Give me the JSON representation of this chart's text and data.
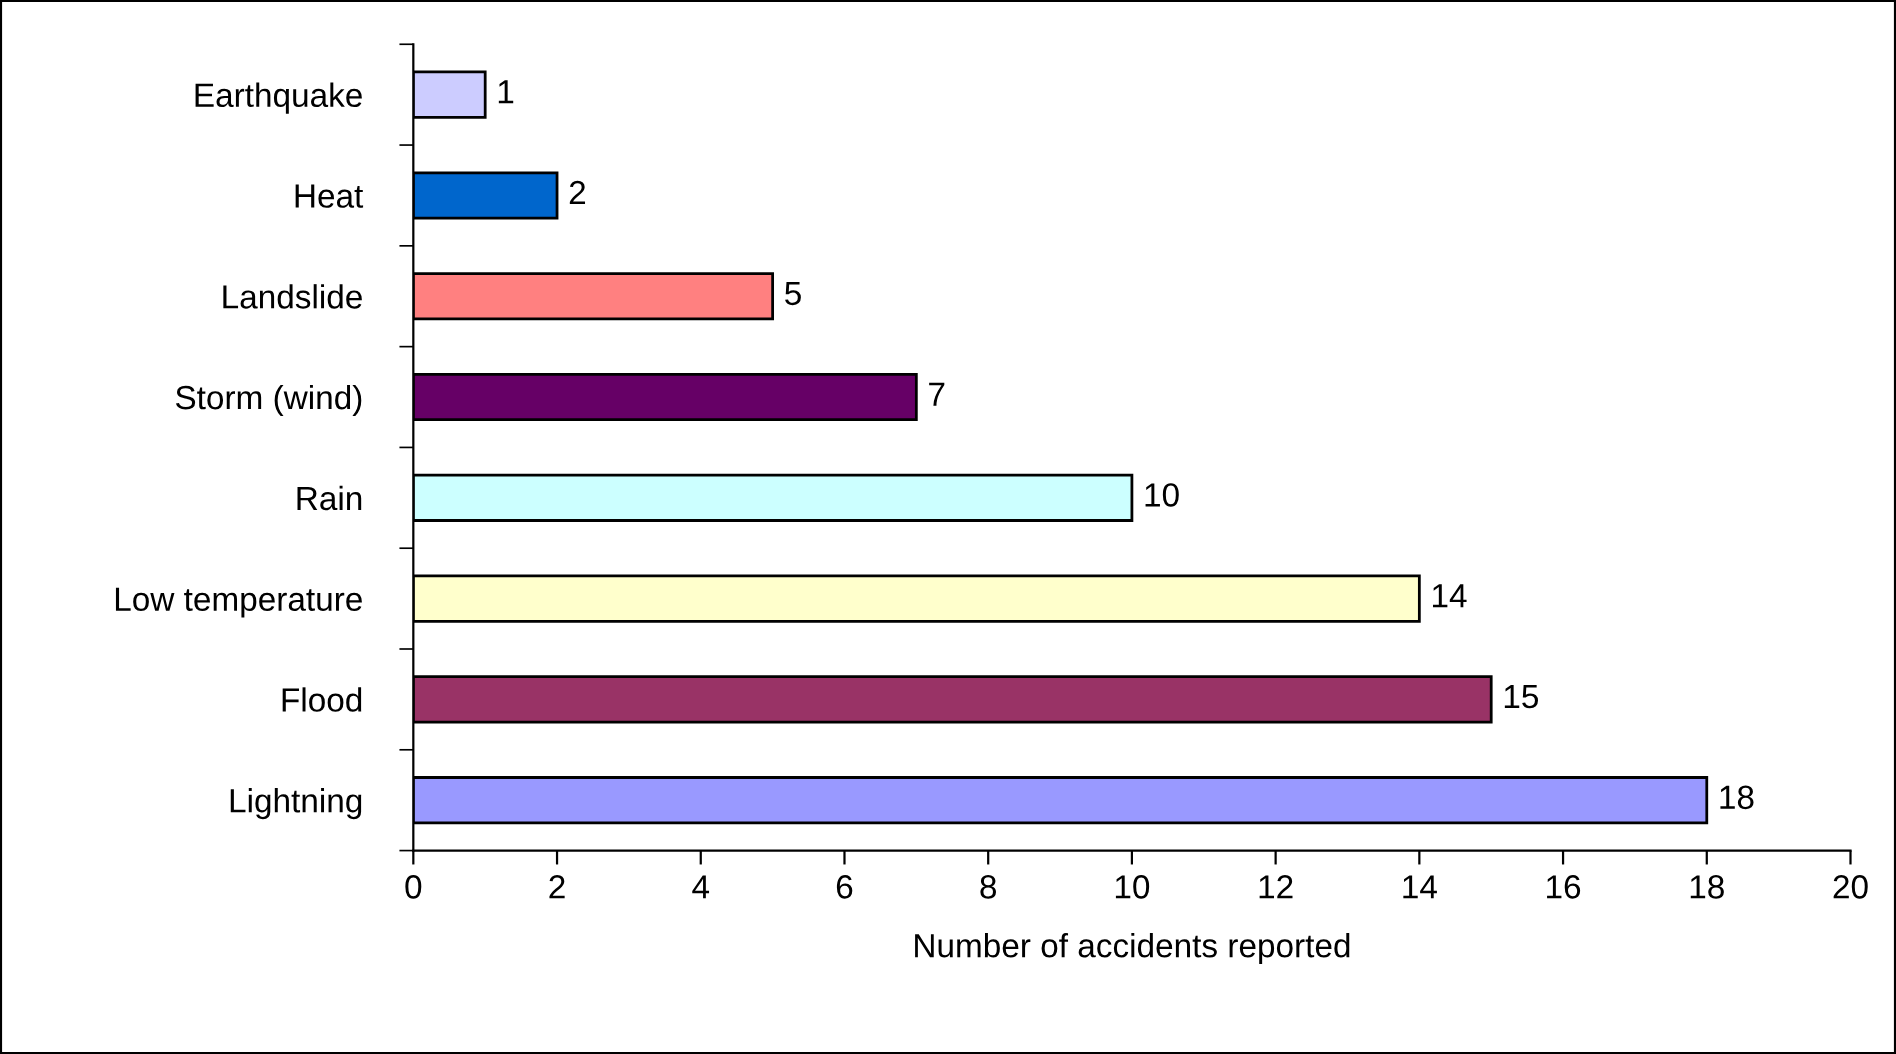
{
  "chart_data": {
    "type": "bar",
    "orientation": "horizontal",
    "xlabel": "Number of accidents reported",
    "categories": [
      "Earthquake",
      "Heat",
      "Landslide",
      "Storm (wind)",
      "Rain",
      "Low temperature",
      "Flood",
      "Lightning"
    ],
    "values": [
      1,
      2,
      5,
      7,
      10,
      14,
      15,
      18
    ],
    "colors": [
      "#ccccff",
      "#0066cc",
      "#ff8080",
      "#660066",
      "#ccffff",
      "#ffffcc",
      "#993366",
      "#9999ff"
    ],
    "xlim": [
      0,
      20
    ],
    "xticks": [
      0,
      2,
      4,
      6,
      8,
      10,
      12,
      14,
      16,
      18,
      20
    ],
    "data_labels": true,
    "grid": false,
    "legend": false
  }
}
